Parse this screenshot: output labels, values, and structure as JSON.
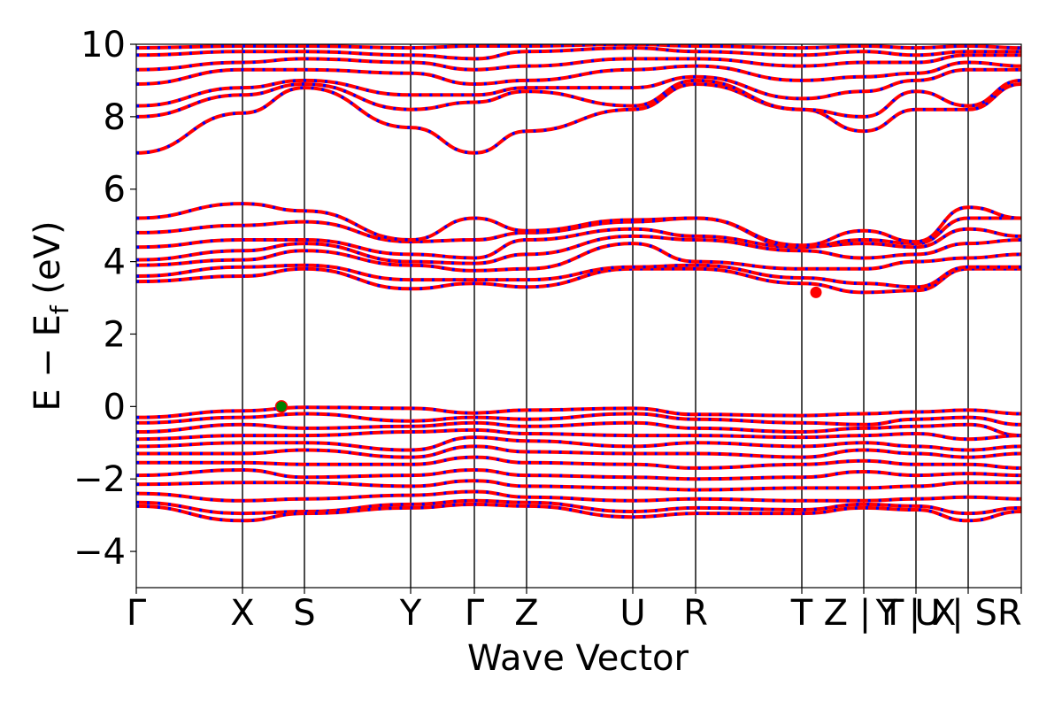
{
  "chart_data": {
    "type": "line",
    "title": "",
    "xlabel": "Wave Vector",
    "ylabel": "E − E_f (eV)",
    "ylabel_parts": {
      "main": "E − E",
      "sub": "f",
      "unit": " (eV)"
    },
    "ylim": [
      -5,
      10
    ],
    "yticks": [
      -4,
      -2,
      0,
      2,
      4,
      6,
      8,
      10
    ],
    "ytick_labels": [
      "−4",
      "−2",
      "0",
      "2",
      "4",
      "6",
      "8",
      "10"
    ],
    "xlim": [
      0,
      1
    ],
    "kpath_ticks": [
      {
        "label": "Γ",
        "x": 0.0
      },
      {
        "label": "X",
        "x": 0.12
      },
      {
        "label": "S",
        "x": 0.19
      },
      {
        "label": "Y",
        "x": 0.31
      },
      {
        "label": "Γ",
        "x": 0.382
      },
      {
        "label": "Z",
        "x": 0.441
      },
      {
        "label": "U",
        "x": 0.561
      },
      {
        "label": "R",
        "x": 0.632
      },
      {
        "label": "T",
        "x": 0.752
      },
      {
        "label": "Z | T",
        "x": 0.822
      },
      {
        "label": "Y | X",
        "x": 0.881
      },
      {
        "label": "U | SR",
        "x": 0.94
      },
      {
        "label": "",
        "x": 1.0
      }
    ],
    "vbm": {
      "x": 0.164,
      "y": 0.0,
      "color": "#008000"
    },
    "cbm": {
      "x": 0.768,
      "y": 3.15,
      "color": "#ff0000"
    },
    "band_style": {
      "spin_up_color": "#ff0000",
      "spin_down_color": "#0000ff",
      "spin_up_style": "solid",
      "spin_down_style": "dotted"
    },
    "valence_bands": [
      [
        -0.3,
        -0.12,
        -0.02,
        -0.05,
        -0.18,
        -0.1,
        -0.05,
        -0.22,
        -0.25,
        -0.2,
        -0.15,
        -0.1,
        -0.2
      ],
      [
        -0.45,
        -0.3,
        -0.2,
        -0.4,
        -0.3,
        -0.35,
        -0.2,
        -0.35,
        -0.45,
        -0.5,
        -0.35,
        -0.3,
        -0.5
      ],
      [
        -0.7,
        -0.5,
        -0.6,
        -0.55,
        -0.45,
        -0.55,
        -0.45,
        -0.6,
        -0.7,
        -0.6,
        -0.55,
        -0.5,
        -0.8
      ],
      [
        -0.9,
        -0.8,
        -0.8,
        -0.7,
        -0.65,
        -0.75,
        -0.8,
        -0.8,
        -0.85,
        -0.8,
        -0.75,
        -0.9,
        -0.8
      ],
      [
        -1.1,
        -1.0,
        -1.0,
        -1.2,
        -0.85,
        -0.95,
        -1.1,
        -1.0,
        -1.1,
        -1.0,
        -1.1,
        -1.2,
        -1.1
      ],
      [
        -1.3,
        -1.3,
        -1.2,
        -1.4,
        -1.1,
        -1.25,
        -1.3,
        -1.3,
        -1.4,
        -1.2,
        -1.3,
        -1.4,
        -1.3
      ],
      [
        -1.55,
        -1.55,
        -1.6,
        -1.6,
        -1.4,
        -1.55,
        -1.6,
        -1.7,
        -1.6,
        -1.5,
        -1.6,
        -1.6,
        -1.7
      ],
      [
        -1.9,
        -1.75,
        -1.95,
        -1.9,
        -1.75,
        -1.9,
        -1.95,
        -2.0,
        -1.95,
        -1.8,
        -1.9,
        -1.85,
        -1.9
      ],
      [
        -2.15,
        -2.1,
        -2.1,
        -2.2,
        -2.05,
        -2.2,
        -2.25,
        -2.3,
        -2.25,
        -2.25,
        -2.2,
        -2.1,
        -2.1
      ],
      [
        -2.4,
        -2.6,
        -2.55,
        -2.45,
        -2.35,
        -2.5,
        -2.6,
        -2.55,
        -2.6,
        -2.6,
        -2.55,
        -2.5,
        -2.55
      ],
      [
        -2.65,
        -2.95,
        -2.9,
        -2.7,
        -2.6,
        -2.65,
        -2.9,
        -2.8,
        -2.85,
        -2.7,
        -2.75,
        -2.95,
        -2.8
      ],
      [
        -2.75,
        -3.15,
        -2.95,
        -2.8,
        -2.7,
        -2.75,
        -3.05,
        -2.95,
        -2.95,
        -2.8,
        -2.85,
        -3.15,
        -2.9
      ]
    ],
    "conduction_bands": [
      [
        3.45,
        3.6,
        3.8,
        3.25,
        3.4,
        3.3,
        3.8,
        3.8,
        3.4,
        3.15,
        3.2,
        3.8,
        3.8
      ],
      [
        3.6,
        3.85,
        3.9,
        3.5,
        3.5,
        3.5,
        3.85,
        3.9,
        3.55,
        3.4,
        3.3,
        3.85,
        3.85
      ],
      [
        3.9,
        4.05,
        4.3,
        3.9,
        3.75,
        3.8,
        4.5,
        4.0,
        3.8,
        3.8,
        4.0,
        4.1,
        4.2
      ],
      [
        4.05,
        4.3,
        4.5,
        4.0,
        3.95,
        4.2,
        4.7,
        4.6,
        4.3,
        4.1,
        4.2,
        4.5,
        4.6
      ],
      [
        4.4,
        4.6,
        4.6,
        4.2,
        4.1,
        4.6,
        4.9,
        4.7,
        4.4,
        4.5,
        4.4,
        4.9,
        4.7
      ],
      [
        4.8,
        5.0,
        5.1,
        4.55,
        4.6,
        4.8,
        5.1,
        5.2,
        4.4,
        4.6,
        4.5,
        5.2,
        5.2
      ],
      [
        5.2,
        5.6,
        5.4,
        4.6,
        5.2,
        4.85,
        5.15,
        5.2,
        4.45,
        4.85,
        4.55,
        5.5,
        5.2
      ],
      [
        7.0,
        8.1,
        8.8,
        7.7,
        7.0,
        7.6,
        8.2,
        8.9,
        8.2,
        7.6,
        8.2,
        8.2,
        8.9
      ],
      [
        8.0,
        8.6,
        8.9,
        8.2,
        8.4,
        8.7,
        8.3,
        9.0,
        8.2,
        8.0,
        8.7,
        8.3,
        9.0
      ],
      [
        8.3,
        8.8,
        9.0,
        8.6,
        8.6,
        8.8,
        8.8,
        9.1,
        8.5,
        8.7,
        9.0,
        9.3,
        9.3
      ],
      [
        8.9,
        9.3,
        9.3,
        9.2,
        8.9,
        9.0,
        9.3,
        9.4,
        9.0,
        9.1,
        9.2,
        9.5,
        9.4
      ],
      [
        9.3,
        9.5,
        9.6,
        9.5,
        9.3,
        9.4,
        9.6,
        9.6,
        9.4,
        9.5,
        9.5,
        9.7,
        9.7
      ],
      [
        9.7,
        9.8,
        9.8,
        9.7,
        9.6,
        9.8,
        9.9,
        9.8,
        9.7,
        9.8,
        9.7,
        9.8,
        9.8
      ],
      [
        9.9,
        9.95,
        9.95,
        9.9,
        9.95,
        9.95,
        10.0,
        9.95,
        9.9,
        9.95,
        9.9,
        9.95,
        9.9
      ]
    ]
  }
}
